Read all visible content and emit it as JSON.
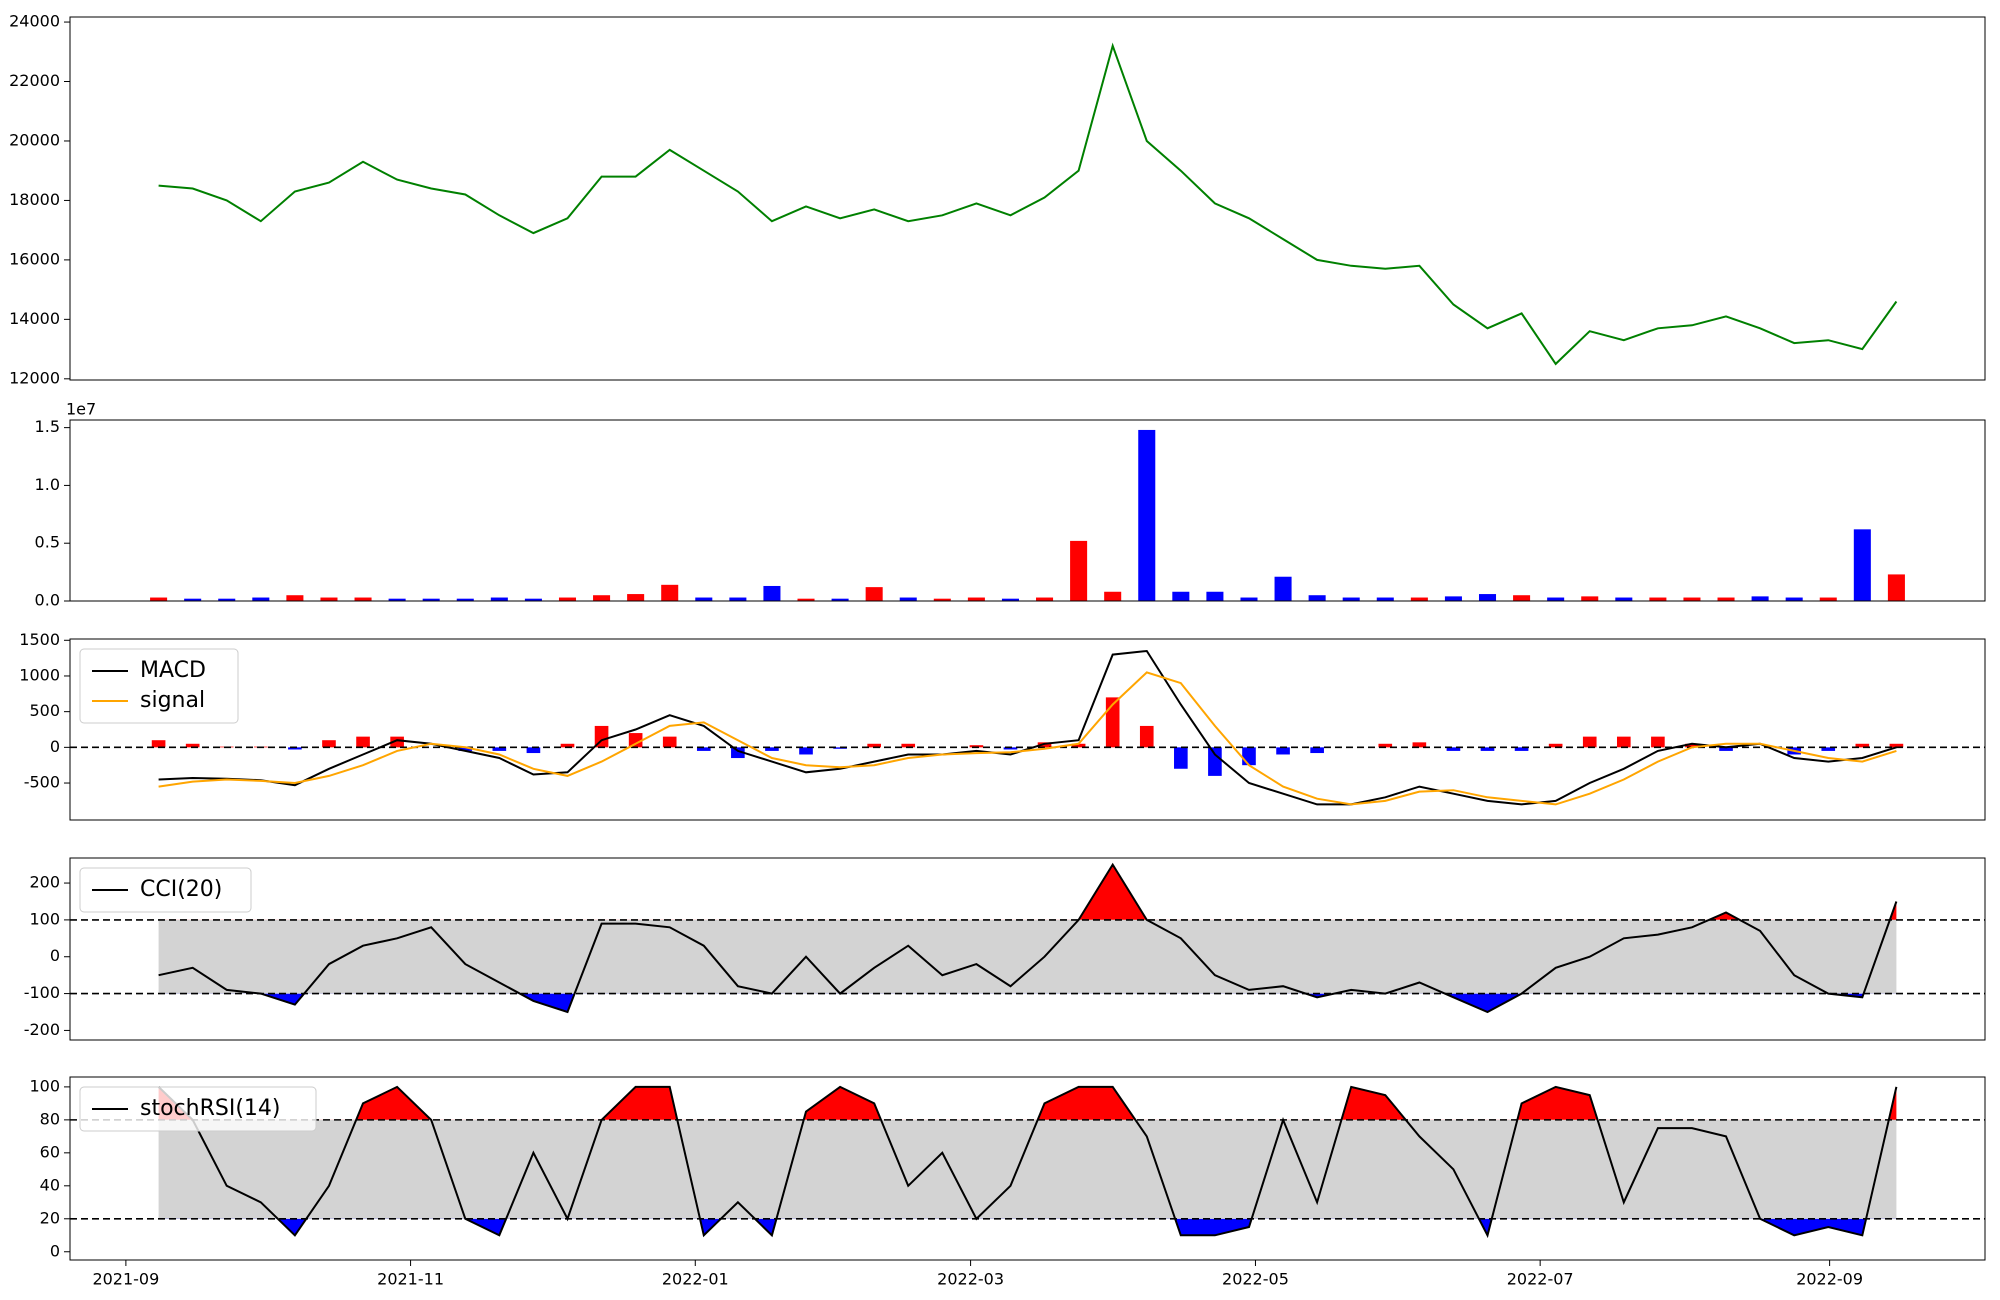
{
  "chart_data": [
    {
      "type": "line",
      "color": "green",
      "values": [
        18500,
        18400,
        18000,
        17300,
        18300,
        18600,
        19300,
        18700,
        18400,
        18200,
        17500,
        16900,
        17400,
        18800,
        18800,
        19700,
        19000,
        18300,
        17300,
        17800,
        17400,
        17700,
        17300,
        17500,
        17900,
        17500,
        18100,
        19000,
        23200,
        20000,
        19000,
        17900,
        17400,
        16700,
        16000,
        15800,
        15700,
        15800,
        14500,
        13700,
        14200,
        12500,
        13600,
        13300,
        13700,
        13800,
        14100,
        13700,
        13200,
        13300,
        13000,
        14600
      ],
      "ylim": [
        11960,
        24170
      ],
      "yticks": [
        12000,
        14000,
        16000,
        18000,
        20000,
        22000,
        24000
      ]
    },
    {
      "type": "bar",
      "up_color": "red",
      "down_color": "blue",
      "y_offset_label": "1e7",
      "values": [
        0.03,
        0.02,
        0.02,
        0.03,
        0.05,
        0.03,
        0.03,
        0.02,
        0.02,
        0.02,
        0.03,
        0.02,
        0.03,
        0.05,
        0.06,
        0.14,
        0.03,
        0.03,
        0.13,
        0.02,
        0.02,
        0.12,
        0.03,
        0.02,
        0.03,
        0.02,
        0.03,
        0.52,
        0.08,
        1.48,
        0.08,
        0.08,
        0.03,
        0.21,
        0.05,
        0.03,
        0.03,
        0.03,
        0.04,
        0.06,
        0.05,
        0.03,
        0.04,
        0.03,
        0.03,
        0.03,
        0.03,
        0.04,
        0.03,
        0.03,
        0.62,
        0.23
      ],
      "ylim": [
        0,
        1.566
      ],
      "yticks": [
        {
          "value": 0,
          "label": "0.0"
        },
        0.5,
        {
          "value": 1,
          "label": "1.0"
        },
        1.5
      ]
    },
    {
      "type": "macd",
      "legend": "upper left",
      "hlines": [
        0
      ],
      "series": [
        {
          "name": "MACD",
          "color": "black",
          "values": [
            -450,
            -430,
            -440,
            -460,
            -530,
            -300,
            -100,
            100,
            50,
            -50,
            -150,
            -380,
            -350,
            100,
            250,
            450,
            300,
            -50,
            -200,
            -350,
            -300,
            -200,
            -100,
            -100,
            -50,
            -100,
            50,
            100,
            1300,
            1350,
            600,
            -100,
            -500,
            -650,
            -800,
            -800,
            -700,
            -550,
            -650,
            -750,
            -800,
            -750,
            -500,
            -300,
            -50,
            50,
            0,
            50,
            -150,
            -200,
            -150,
            0
          ]
        },
        {
          "name": "signal",
          "color": "orange",
          "values": [
            -550,
            -480,
            -450,
            -470,
            -500,
            -400,
            -250,
            -50,
            50,
            0,
            -100,
            -300,
            -400,
            -200,
            50,
            300,
            350,
            100,
            -150,
            -250,
            -280,
            -250,
            -150,
            -100,
            -80,
            -70,
            -20,
            50,
            600,
            1050,
            900,
            300,
            -250,
            -550,
            -720,
            -800,
            -750,
            -620,
            -600,
            -700,
            -750,
            -800,
            -650,
            -450,
            -200,
            0,
            50,
            50,
            -50,
            -150,
            -200,
            -50
          ]
        }
      ],
      "histogram": [
        100,
        50,
        10,
        10,
        -30,
        100,
        150,
        150,
        0,
        -50,
        -50,
        -80,
        50,
        300,
        200,
        150,
        -50,
        -150,
        -50,
        -100,
        -20,
        50,
        50,
        0,
        30,
        -30,
        70,
        50,
        700,
        300,
        -300,
        -400,
        -250,
        -100,
        -80,
        0,
        50,
        70,
        -50,
        -50,
        -50,
        50,
        150,
        150,
        150,
        50,
        -50,
        0,
        -100,
        -50,
        50,
        50
      ],
      "pos_color": "red",
      "neg_color": "blue",
      "ylim": [
        -1018,
        1518
      ],
      "yticks": [
        -500,
        0,
        500,
        1000,
        1500
      ]
    },
    {
      "type": "oscillator",
      "legend": "upper left",
      "name": "CCI(20)",
      "color": "black",
      "levels": [
        -100,
        100
      ],
      "band_color": "lightgray",
      "upper_fill": "red",
      "lower_fill": "blue",
      "values": [
        -50,
        -30,
        -90,
        -100,
        -130,
        -20,
        30,
        50,
        80,
        -20,
        -70,
        -120,
        -150,
        90,
        90,
        80,
        30,
        -80,
        -100,
        0,
        -100,
        -30,
        30,
        -50,
        -20,
        -80,
        0,
        100,
        250,
        100,
        50,
        -50,
        -90,
        -80,
        -110,
        -90,
        -100,
        -70,
        -110,
        -150,
        -100,
        -30,
        0,
        50,
        60,
        80,
        120,
        70,
        -50,
        -100,
        -110,
        150
      ],
      "ylim": [
        -226,
        268
      ],
      "yticks": [
        -200,
        -100,
        0,
        100,
        200
      ]
    },
    {
      "type": "oscillator",
      "legend": "upper left",
      "name": "stochRSI(14)",
      "color": "black",
      "levels": [
        20,
        80
      ],
      "band_color": "lightgray",
      "upper_fill": "red",
      "lower_fill": "blue",
      "values": [
        100,
        80,
        40,
        30,
        10,
        40,
        90,
        100,
        80,
        20,
        10,
        60,
        20,
        80,
        100,
        100,
        10,
        30,
        10,
        85,
        100,
        90,
        40,
        60,
        20,
        40,
        90,
        100,
        100,
        70,
        10,
        10,
        15,
        80,
        30,
        100,
        95,
        70,
        50,
        10,
        90,
        100,
        95,
        30,
        75,
        75,
        70,
        20,
        10,
        15,
        10,
        100
      ],
      "ylim": [
        -5,
        106
      ],
      "yticks": [
        0,
        20,
        40,
        60,
        80,
        100
      ],
      "x": [
        2021.685,
        2021.705,
        2021.725,
        2021.745,
        2021.765,
        2021.785,
        2021.805,
        2021.825,
        2021.845,
        2021.865,
        2021.885,
        2021.905,
        2021.925,
        2021.945,
        2021.965,
        2021.985,
        2022.005,
        2022.025,
        2022.045,
        2022.065,
        2022.085,
        2022.105,
        2022.125,
        2022.145,
        2022.165,
        2022.185,
        2022.205,
        2022.225,
        2022.245,
        2022.265,
        2022.285,
        2022.305,
        2022.325,
        2022.345,
        2022.365,
        2022.385,
        2022.405,
        2022.425,
        2022.445,
        2022.465,
        2022.485,
        2022.505,
        2022.525,
        2022.545,
        2022.565,
        2022.585,
        2022.605,
        2022.625,
        2022.645,
        2022.665,
        2022.685,
        2022.705
      ],
      "xlim": [
        2021.633,
        2022.757
      ],
      "xticks": [
        {
          "value": 2021.6658,
          "label": "2021-09"
        },
        {
          "value": 2021.8329,
          "label": "2021-11"
        },
        {
          "value": 2022.0,
          "label": "2022-01"
        },
        {
          "value": 2022.1616,
          "label": "2022-03"
        },
        {
          "value": 2022.3288,
          "label": "2022-05"
        },
        {
          "value": 2022.4959,
          "label": "2022-07"
        },
        {
          "value": 2022.6658,
          "label": "2022-09"
        }
      ]
    }
  ]
}
